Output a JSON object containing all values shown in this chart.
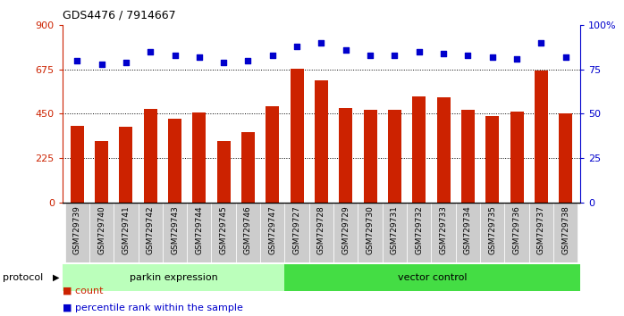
{
  "title": "GDS4476 / 7914667",
  "samples": [
    "GSM729739",
    "GSM729740",
    "GSM729741",
    "GSM729742",
    "GSM729743",
    "GSM729744",
    "GSM729745",
    "GSM729746",
    "GSM729747",
    "GSM729727",
    "GSM729728",
    "GSM729729",
    "GSM729730",
    "GSM729731",
    "GSM729732",
    "GSM729733",
    "GSM729734",
    "GSM729735",
    "GSM729736",
    "GSM729737",
    "GSM729738"
  ],
  "counts": [
    390,
    310,
    385,
    475,
    425,
    455,
    310,
    355,
    490,
    680,
    620,
    480,
    470,
    470,
    540,
    535,
    470,
    440,
    460,
    670,
    450
  ],
  "percentiles": [
    80,
    78,
    79,
    85,
    83,
    82,
    79,
    80,
    83,
    88,
    90,
    86,
    83,
    83,
    85,
    84,
    83,
    82,
    81,
    90,
    82
  ],
  "parkin_count": 9,
  "vector_count": 12,
  "bar_color": "#cc2200",
  "dot_color": "#0000cc",
  "parkin_color": "#bbffbb",
  "vector_color": "#44dd44",
  "ylim_left": [
    0,
    900
  ],
  "ylim_right": [
    0,
    100
  ],
  "yticks_left": [
    0,
    225,
    450,
    675,
    900
  ],
  "yticks_right": [
    0,
    25,
    50,
    75,
    100
  ],
  "grid_values": [
    225,
    450,
    675
  ],
  "legend_count_label": "count",
  "legend_pct_label": "percentile rank within the sample",
  "protocol_label": "protocol",
  "parkin_label": "parkin expression",
  "vector_label": "vector control",
  "xticklabel_bg": "#cccccc",
  "spine_color": "#000000"
}
